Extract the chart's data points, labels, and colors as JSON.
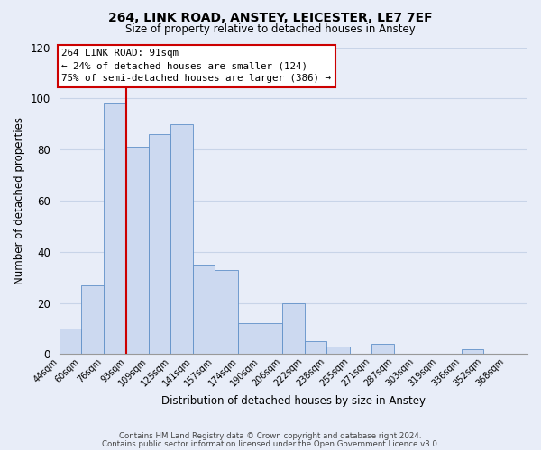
{
  "title1": "264, LINK ROAD, ANSTEY, LEICESTER, LE7 7EF",
  "title2": "Size of property relative to detached houses in Anstey",
  "xlabel": "Distribution of detached houses by size in Anstey",
  "ylabel": "Number of detached properties",
  "footer1": "Contains HM Land Registry data © Crown copyright and database right 2024.",
  "footer2": "Contains public sector information licensed under the Open Government Licence v3.0.",
  "annotation_line1": "264 LINK ROAD: 91sqm",
  "annotation_line2": "← 24% of detached houses are smaller (124)",
  "annotation_line3": "75% of semi-detached houses are larger (386) →",
  "bar_left_edges": [
    44,
    60,
    76,
    93,
    109,
    125,
    141,
    157,
    174,
    190,
    206,
    222,
    238,
    255,
    271,
    287,
    303,
    319,
    336,
    352
  ],
  "bar_widths": [
    16,
    16,
    17,
    16,
    16,
    16,
    16,
    17,
    16,
    16,
    16,
    16,
    17,
    16,
    16,
    16,
    16,
    17,
    16,
    16
  ],
  "bar_heights": [
    10,
    27,
    98,
    81,
    86,
    90,
    35,
    33,
    12,
    12,
    20,
    5,
    3,
    0,
    4,
    0,
    0,
    0,
    2,
    0
  ],
  "tick_labels": [
    "44sqm",
    "60sqm",
    "76sqm",
    "93sqm",
    "109sqm",
    "125sqm",
    "141sqm",
    "157sqm",
    "174sqm",
    "190sqm",
    "206sqm",
    "222sqm",
    "238sqm",
    "255sqm",
    "271sqm",
    "287sqm",
    "303sqm",
    "319sqm",
    "336sqm",
    "352sqm",
    "368sqm"
  ],
  "bar_color": "#ccd9f0",
  "bar_edge_color": "#6090c8",
  "grid_color": "#c8d4e8",
  "background_color": "#e8edf8",
  "vline_x": 93,
  "vline_color": "#cc0000",
  "annotation_box_color": "#ffffff",
  "annotation_box_edge": "#cc0000",
  "ylim": [
    0,
    120
  ],
  "yticks": [
    0,
    20,
    40,
    60,
    80,
    100,
    120
  ],
  "xlim": [
    44,
    384
  ]
}
